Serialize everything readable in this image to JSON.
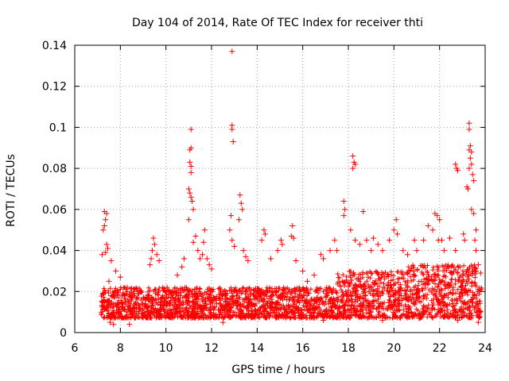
{
  "chart_data": {
    "type": "scatter",
    "title": "Day 104 of 2014, Rate Of TEC Index for receiver thti",
    "xlabel": "GPS time / hours",
    "ylabel": "ROTI / TECUs",
    "xlim": [
      6,
      24
    ],
    "ylim": [
      0,
      0.14
    ],
    "xticks": [
      6,
      8,
      10,
      12,
      14,
      16,
      18,
      20,
      22,
      24
    ],
    "yticks": [
      0,
      0.02,
      0.04,
      0.06,
      0.08,
      0.1,
      0.12,
      0.14
    ],
    "xtick_labels": [
      "6",
      "8",
      "10",
      "12",
      "14",
      "16",
      "18",
      "20",
      "22",
      "24"
    ],
    "ytick_labels": [
      "0",
      "0.02",
      "0.04",
      "0.06",
      "0.08",
      "0.1",
      "0.12",
      "0.14"
    ],
    "grid": true,
    "marker": "+",
    "color": "#ff0000",
    "series": [
      {
        "name": "ROTI",
        "points": [
          [
            7.3,
            0.059
          ],
          [
            7.35,
            0.055
          ],
          [
            7.4,
            0.058
          ],
          [
            7.25,
            0.05
          ],
          [
            7.3,
            0.052
          ],
          [
            7.4,
            0.043
          ],
          [
            7.45,
            0.041
          ],
          [
            7.35,
            0.039
          ],
          [
            7.2,
            0.038
          ],
          [
            7.6,
            0.035
          ],
          [
            7.8,
            0.03
          ],
          [
            8.0,
            0.027
          ],
          [
            7.5,
            0.025
          ],
          [
            8.3,
            0.022
          ],
          [
            8.6,
            0.02
          ],
          [
            7.55,
            0.005
          ],
          [
            7.7,
            0.004
          ],
          [
            9.45,
            0.046
          ],
          [
            9.5,
            0.043
          ],
          [
            9.4,
            0.04
          ],
          [
            9.35,
            0.036
          ],
          [
            9.6,
            0.038
          ],
          [
            9.7,
            0.035
          ],
          [
            9.3,
            0.033
          ],
          [
            10.05,
            0.022
          ],
          [
            10.5,
            0.028
          ],
          [
            10.7,
            0.032
          ],
          [
            11.1,
            0.099
          ],
          [
            11.1,
            0.09
          ],
          [
            11.05,
            0.089
          ],
          [
            11.05,
            0.083
          ],
          [
            11.1,
            0.081
          ],
          [
            11.1,
            0.078
          ],
          [
            11.0,
            0.07
          ],
          [
            11.05,
            0.068
          ],
          [
            11.1,
            0.066
          ],
          [
            11.15,
            0.064
          ],
          [
            11.2,
            0.06
          ],
          [
            11.0,
            0.055
          ],
          [
            11.3,
            0.047
          ],
          [
            11.2,
            0.044
          ],
          [
            11.4,
            0.04
          ],
          [
            11.6,
            0.038
          ],
          [
            11.5,
            0.036
          ],
          [
            10.8,
            0.036
          ],
          [
            11.7,
            0.05
          ],
          [
            11.65,
            0.044
          ],
          [
            11.8,
            0.036
          ],
          [
            11.9,
            0.033
          ],
          [
            12.0,
            0.031
          ],
          [
            12.9,
            0.137
          ],
          [
            12.9,
            0.101
          ],
          [
            12.9,
            0.099
          ],
          [
            12.95,
            0.093
          ],
          [
            12.85,
            0.057
          ],
          [
            12.8,
            0.05
          ],
          [
            12.9,
            0.045
          ],
          [
            13.0,
            0.042
          ],
          [
            13.25,
            0.067
          ],
          [
            13.3,
            0.063
          ],
          [
            13.35,
            0.06
          ],
          [
            13.2,
            0.055
          ],
          [
            13.4,
            0.04
          ],
          [
            13.5,
            0.037
          ],
          [
            13.6,
            0.035
          ],
          [
            14.3,
            0.05
          ],
          [
            14.35,
            0.048
          ],
          [
            14.2,
            0.045
          ],
          [
            14.6,
            0.036
          ],
          [
            14.9,
            0.04
          ],
          [
            15.05,
            0.045
          ],
          [
            15.1,
            0.043
          ],
          [
            15.55,
            0.052
          ],
          [
            15.5,
            0.047
          ],
          [
            15.6,
            0.046
          ],
          [
            15.7,
            0.035
          ],
          [
            16.0,
            0.03
          ],
          [
            16.2,
            0.025
          ],
          [
            16.5,
            0.028
          ],
          [
            16.8,
            0.038
          ],
          [
            16.9,
            0.036
          ],
          [
            17.2,
            0.04
          ],
          [
            17.4,
            0.045
          ],
          [
            17.5,
            0.04
          ],
          [
            17.8,
            0.064
          ],
          [
            17.85,
            0.06
          ],
          [
            17.8,
            0.057
          ],
          [
            18.2,
            0.086
          ],
          [
            18.25,
            0.083
          ],
          [
            18.3,
            0.082
          ],
          [
            18.2,
            0.08
          ],
          [
            18.1,
            0.05
          ],
          [
            18.3,
            0.045
          ],
          [
            18.5,
            0.043
          ],
          [
            18.65,
            0.059
          ],
          [
            18.8,
            0.045
          ],
          [
            19.0,
            0.04
          ],
          [
            19.1,
            0.046
          ],
          [
            19.3,
            0.043
          ],
          [
            19.5,
            0.04
          ],
          [
            19.8,
            0.045
          ],
          [
            20.0,
            0.05
          ],
          [
            20.1,
            0.055
          ],
          [
            20.15,
            0.048
          ],
          [
            20.4,
            0.04
          ],
          [
            20.6,
            0.038
          ],
          [
            20.9,
            0.045
          ],
          [
            21.0,
            0.04
          ],
          [
            21.3,
            0.045
          ],
          [
            21.5,
            0.052
          ],
          [
            21.8,
            0.058
          ],
          [
            21.9,
            0.057
          ],
          [
            22.0,
            0.055
          ],
          [
            21.7,
            0.05
          ],
          [
            21.95,
            0.045
          ],
          [
            22.1,
            0.045
          ],
          [
            22.2,
            0.04
          ],
          [
            22.45,
            0.046
          ],
          [
            22.7,
            0.082
          ],
          [
            22.75,
            0.08
          ],
          [
            22.8,
            0.079
          ],
          [
            22.7,
            0.04
          ],
          [
            22.9,
            0.032
          ],
          [
            23.05,
            0.048
          ],
          [
            23.1,
            0.045
          ],
          [
            23.3,
            0.102
          ],
          [
            23.3,
            0.099
          ],
          [
            23.35,
            0.091
          ],
          [
            23.3,
            0.089
          ],
          [
            23.4,
            0.088
          ],
          [
            23.35,
            0.085
          ],
          [
            23.4,
            0.082
          ],
          [
            23.3,
            0.08
          ],
          [
            23.45,
            0.077
          ],
          [
            23.5,
            0.074
          ],
          [
            23.2,
            0.071
          ],
          [
            23.25,
            0.07
          ],
          [
            23.4,
            0.06
          ],
          [
            23.5,
            0.058
          ],
          [
            23.6,
            0.05
          ],
          [
            23.55,
            0.045
          ],
          [
            23.6,
            0.04
          ],
          [
            23.7,
            0.033
          ],
          [
            23.6,
            0.03
          ],
          [
            23.8,
            0.029
          ],
          [
            23.65,
            0.015
          ],
          [
            23.75,
            0.01
          ],
          [
            23.7,
            0.005
          ],
          [
            7.2,
            0.015
          ],
          [
            7.4,
            0.012
          ],
          [
            7.6,
            0.018
          ],
          [
            7.9,
            0.013
          ],
          [
            8.2,
            0.015
          ],
          [
            8.5,
            0.01
          ],
          [
            8.8,
            0.012
          ],
          [
            9.1,
            0.014
          ],
          [
            9.4,
            0.016
          ],
          [
            9.8,
            0.012
          ],
          [
            10.2,
            0.015
          ],
          [
            10.6,
            0.01
          ],
          [
            10.9,
            0.018
          ],
          [
            11.3,
            0.014
          ],
          [
            11.6,
            0.012
          ],
          [
            12.0,
            0.016
          ],
          [
            12.3,
            0.011
          ],
          [
            12.7,
            0.015
          ],
          [
            13.1,
            0.018
          ],
          [
            13.5,
            0.016
          ],
          [
            13.9,
            0.013
          ],
          [
            14.2,
            0.017
          ],
          [
            14.6,
            0.014
          ],
          [
            15.0,
            0.012
          ],
          [
            15.4,
            0.016
          ],
          [
            15.8,
            0.011
          ],
          [
            16.2,
            0.014
          ],
          [
            16.6,
            0.012
          ],
          [
            17.0,
            0.015
          ],
          [
            17.4,
            0.013
          ],
          [
            17.8,
            0.018
          ],
          [
            18.2,
            0.02
          ],
          [
            18.6,
            0.017
          ],
          [
            19.0,
            0.022
          ],
          [
            19.4,
            0.018
          ],
          [
            19.8,
            0.02
          ],
          [
            20.2,
            0.017
          ],
          [
            20.6,
            0.022
          ],
          [
            21.0,
            0.019
          ],
          [
            21.4,
            0.024
          ],
          [
            21.8,
            0.021
          ],
          [
            22.2,
            0.018
          ],
          [
            22.6,
            0.022
          ],
          [
            23.0,
            0.019
          ],
          [
            23.4,
            0.016
          ],
          [
            23.7,
            0.012
          ],
          [
            8.4,
            0.004
          ],
          [
            12.5,
            0.005
          ],
          [
            16.9,
            0.006
          ],
          [
            19.5,
            0.006
          ],
          [
            21.1,
            0.007
          ],
          [
            22.8,
            0.006
          ]
        ]
      }
    ]
  }
}
